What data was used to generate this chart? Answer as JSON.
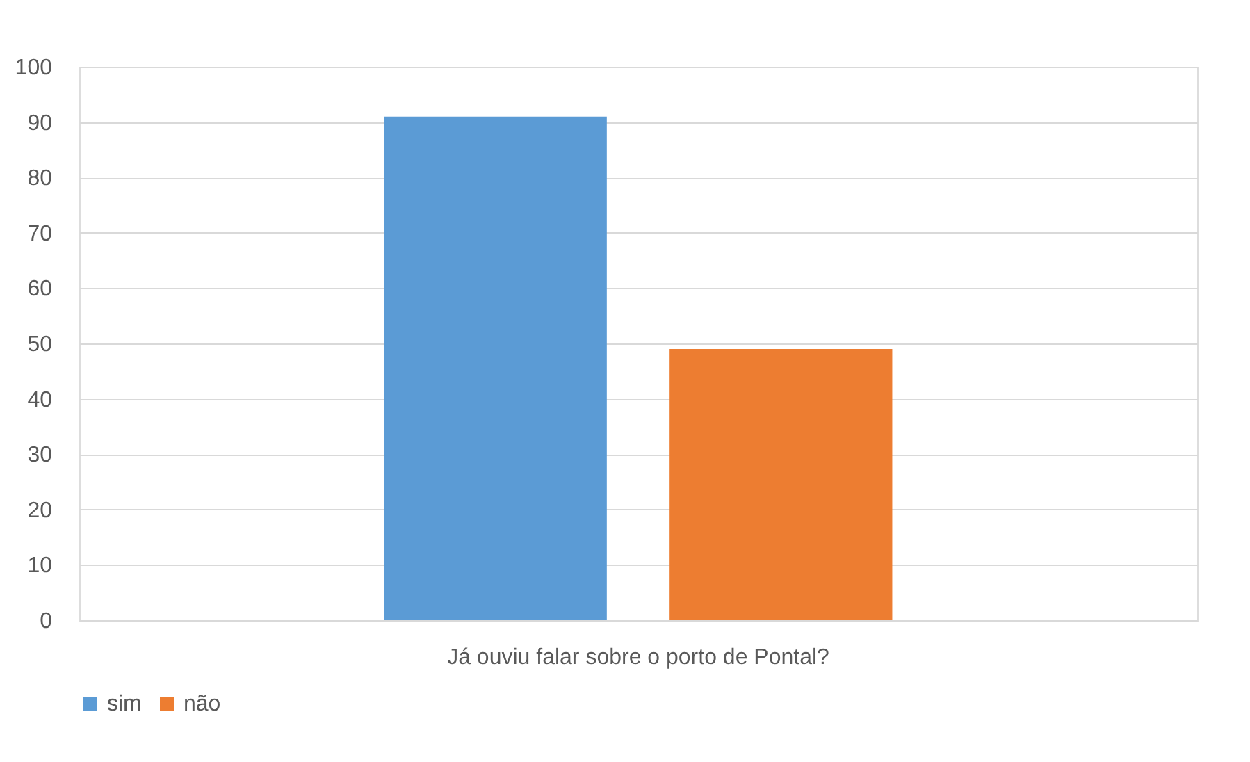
{
  "chart_data": {
    "type": "bar",
    "categories": [
      "Já ouviu falar sobre o porto de Pontal?"
    ],
    "series": [
      {
        "name": "sim",
        "color": "#5b9bd5",
        "values": [
          91
        ]
      },
      {
        "name": "não",
        "color": "#ed7d31",
        "values": [
          49
        ]
      }
    ],
    "ylim": [
      0,
      100
    ],
    "yticks": [
      0,
      10,
      20,
      30,
      40,
      50,
      60,
      70,
      80,
      90,
      100
    ],
    "grid": "y",
    "legend": "bottom"
  }
}
